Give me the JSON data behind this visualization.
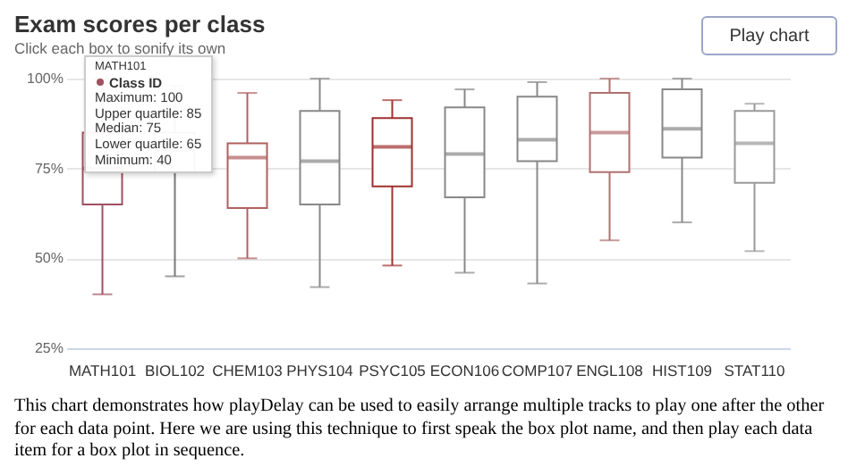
{
  "chart_data": {
    "type": "box",
    "title": "Exam scores per class",
    "subtitle": "Click each box to sonify its own",
    "categories": [
      "MATH101",
      "BIOL102",
      "CHEM103",
      "PHYS104",
      "PSYC105",
      "ECON106",
      "COMP107",
      "ENGL108",
      "HIST109",
      "STAT110"
    ],
    "boxes": [
      {
        "low": 40,
        "q1": 65,
        "median": 75,
        "q3": 85,
        "high": 100
      },
      {
        "low": 45,
        "q1": 74,
        "median": 80,
        "q3": 85,
        "high": 98
      },
      {
        "low": 50,
        "q1": 64,
        "median": 78,
        "q3": 82,
        "high": 96
      },
      {
        "low": 42,
        "q1": 65,
        "median": 77,
        "q3": 91,
        "high": 100
      },
      {
        "low": 48,
        "q1": 70,
        "median": 81,
        "q3": 89,
        "high": 94
      },
      {
        "low": 46,
        "q1": 67,
        "median": 79,
        "q3": 92,
        "high": 97
      },
      {
        "low": 43,
        "q1": 77,
        "median": 83,
        "q3": 95,
        "high": 99
      },
      {
        "low": 55,
        "q1": 74,
        "median": 85,
        "q3": 96,
        "high": 100
      },
      {
        "low": 60,
        "q1": 78,
        "median": 86,
        "q3": 97,
        "high": 100
      },
      {
        "low": 52,
        "q1": 71,
        "median": 82,
        "q3": 91,
        "high": 93
      }
    ],
    "colors": [
      "#a05060",
      "#777777",
      "#b06060",
      "#888888",
      "#a03030",
      "#888888",
      "#888888",
      "#b07070",
      "#888888",
      "#999999"
    ],
    "ylim": [
      25,
      100
    ],
    "yticks": [
      {
        "value": 25,
        "label": "25%"
      },
      {
        "value": 50,
        "label": "50%"
      },
      {
        "value": 75,
        "label": "75%"
      },
      {
        "value": 100,
        "label": "100%"
      }
    ],
    "grid": "y",
    "annotations": [
      "Play chart",
      "MATH101",
      "Class ID",
      "Maximum: 100",
      "Upper quartile: 85",
      "Median: 75",
      "Lower quartile: 65",
      "Minimum: 40",
      "This chart demonstrates how playDelay can be used to easily arrange multiple tracks to play one after the other for each data point. Here we are using this technique to first speak the box plot name, and then play each data item for a box plot in sequence."
    ]
  }
}
